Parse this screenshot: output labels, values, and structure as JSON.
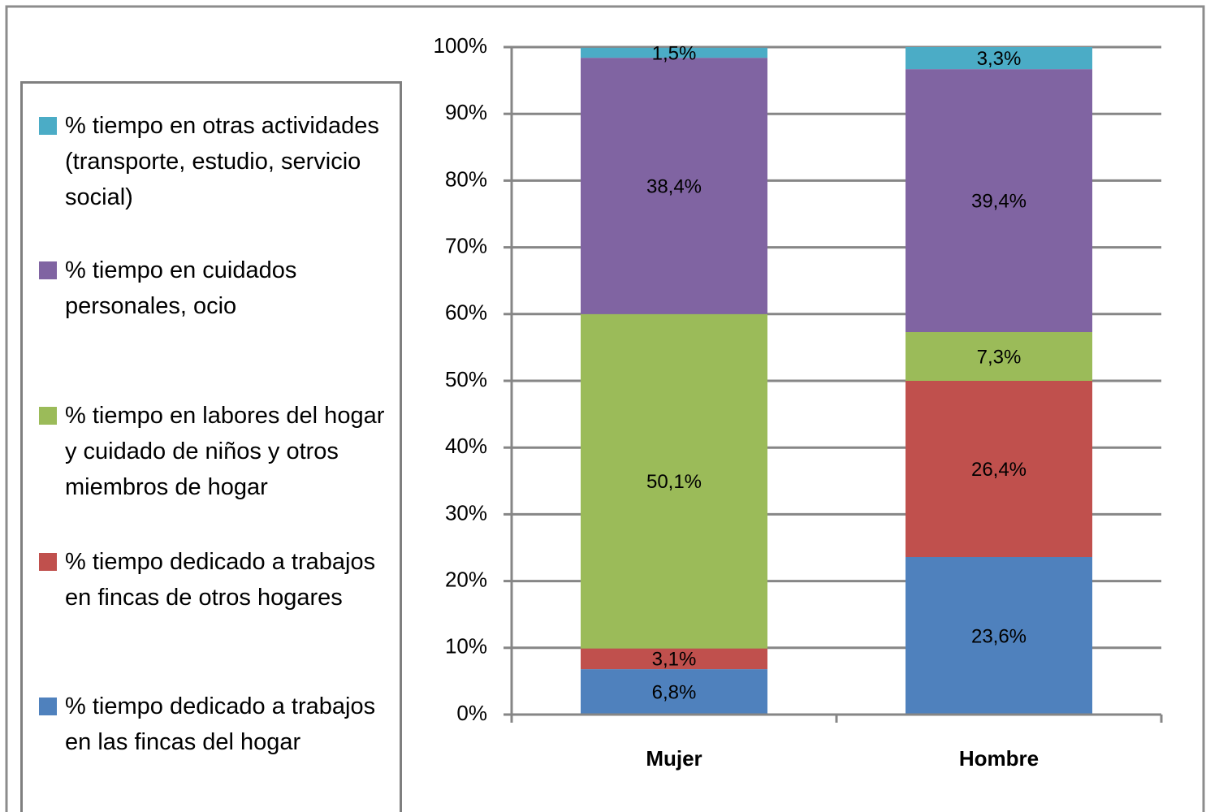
{
  "chart_data": {
    "type": "stacked_bar",
    "categories": [
      "Mujer",
      "Hombre"
    ],
    "series": [
      {
        "name": "% tiempo dedicado a trabajos en las fincas del hogar",
        "color": "#4f81bd",
        "values": [
          6.8,
          23.6
        ],
        "value_labels": [
          "6,8%",
          "23,6%"
        ]
      },
      {
        "name": "% tiempo dedicado a trabajos en fincas de otros hogares",
        "color": "#c0504d",
        "values": [
          3.1,
          26.4
        ],
        "value_labels": [
          "3,1%",
          "26,4%"
        ]
      },
      {
        "name": "% tiempo en labores del hogar y cuidado de niños y otros miembros de hogar",
        "color": "#9bbb59",
        "values": [
          50.1,
          7.3
        ],
        "value_labels": [
          "50,1%",
          "7,3%"
        ]
      },
      {
        "name": "% tiempo en cuidados personales, ocio",
        "color": "#8064a2",
        "values": [
          38.4,
          39.4
        ],
        "value_labels": [
          "38,4%",
          "39,4%"
        ]
      },
      {
        "name": "% tiempo en otras actividades (transporte, estudio, servicio social)",
        "color": "#4bacc6",
        "values": [
          1.5,
          3.3
        ],
        "value_labels": [
          "1,5%",
          "3,3%"
        ]
      }
    ],
    "ylim": [
      0,
      100
    ],
    "yticks": [
      {
        "value": 0,
        "label": "0%"
      },
      {
        "value": 10,
        "label": "10%"
      },
      {
        "value": 20,
        "label": "20%"
      },
      {
        "value": 30,
        "label": "30%"
      },
      {
        "value": 40,
        "label": "40%"
      },
      {
        "value": 50,
        "label": "50%"
      },
      {
        "value": 60,
        "label": "60%"
      },
      {
        "value": 70,
        "label": "70%"
      },
      {
        "value": 80,
        "label": "80%"
      },
      {
        "value": 90,
        "label": "90%"
      },
      {
        "value": 100,
        "label": "100%"
      }
    ],
    "grid": true,
    "legend": "left"
  }
}
